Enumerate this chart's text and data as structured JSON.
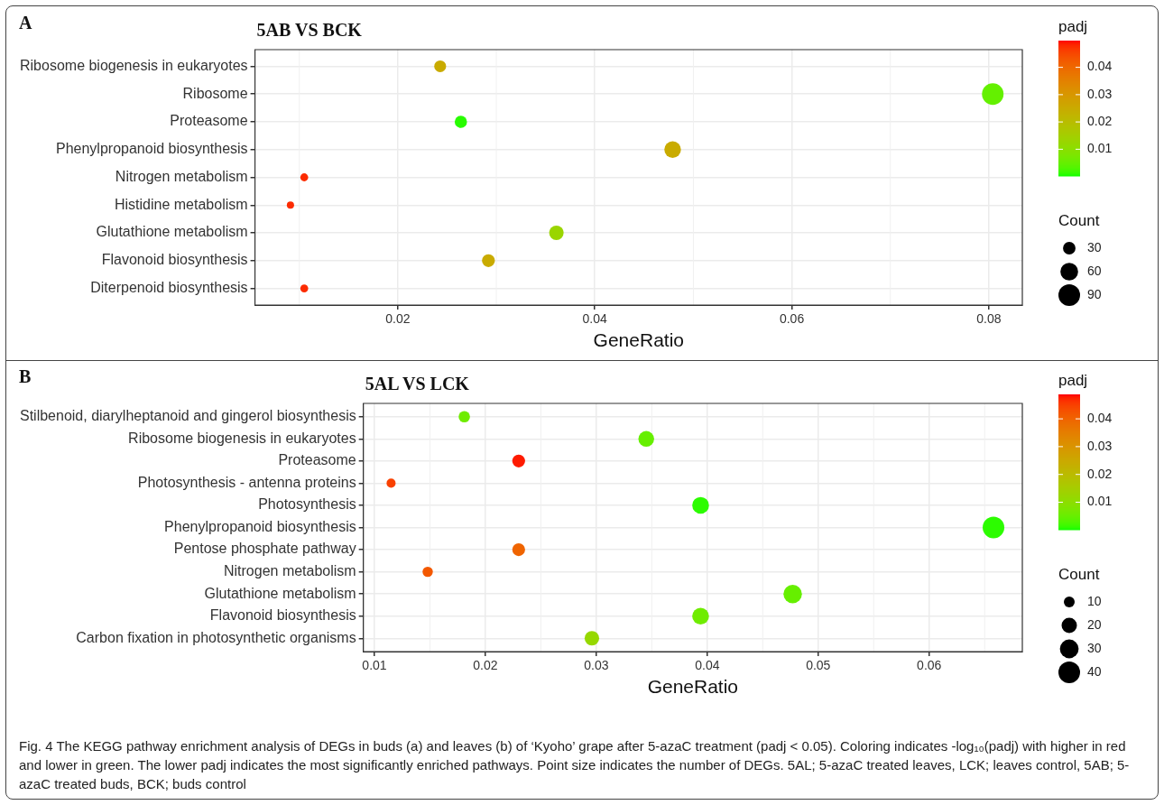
{
  "chart_data": [
    {
      "type": "bubble",
      "title": "5AB VS BCK",
      "orientation": "horizontal",
      "xlabel": "GeneRatio",
      "clabel": "padj",
      "legend_title": "Count",
      "annotations": [
        "A"
      ],
      "categories": [
        "Ribosome biogenesis in eukaryotes",
        "Ribosome",
        "Proteasome",
        "Phenylpropanoid biosynthesis",
        "Nitrogen metabolism",
        "Histidine metabolism",
        "Glutathione metabolism",
        "Flavonoid biosynthesis",
        "Diterpenoid biosynthesis"
      ],
      "values": [
        0.0243,
        0.0804,
        0.0264,
        0.0479,
        0.0105,
        0.0091,
        0.0361,
        0.0292,
        0.0105
      ],
      "sizes": [
        27,
        89,
        29,
        53,
        12,
        10,
        40,
        32,
        12
      ],
      "cvalues": [
        0.025,
        0.005,
        0.001,
        0.025,
        0.048,
        0.048,
        0.013,
        0.025,
        0.048
      ],
      "size_legend": [
        30,
        60,
        90
      ],
      "clim": [
        0.0002,
        0.0498
      ],
      "cticks": [
        0.01,
        0.02,
        0.03,
        0.04
      ],
      "xlim": [
        0.0055,
        0.0834
      ],
      "xticks": [
        0.02,
        0.04,
        0.06,
        0.08
      ],
      "grid": true
    },
    {
      "type": "bubble",
      "title": "5AL VS LCK",
      "orientation": "horizontal",
      "xlabel": "GeneRatio",
      "clabel": "padj",
      "legend_title": "Count",
      "annotations": [
        "B",
        "Fig. 4 The KEGG pathway enrichment analysis of DEGs in buds (a) and leaves (b) of ‘Kyoho’ grape after 5-azaC treatment (padj < 0.05). Coloring indicates -log₁₀(padj) with higher in red and lower in green. The lower padj indicates the most significantly enriched pathways. Point size indicates the number of DEGs. 5AL; 5-azaC treated leaves, LCK; leaves control, 5AB; 5-azaC treated buds, BCK; buds control"
      ],
      "categories": [
        "Stilbenoid, diarylheptanoid and gingerol biosynthesis",
        "Ribosome biogenesis in eukaryotes",
        "Proteasome",
        "Photosynthesis - antenna proteins",
        "Photosynthesis",
        "Phenylpropanoid biosynthesis",
        "Pentose phosphate pathway",
        "Nitrogen metabolism",
        "Glutathione metabolism",
        "Flavonoid biosynthesis",
        "Carbon fixation in photosynthetic organisms"
      ],
      "values": [
        0.0181,
        0.0345,
        0.023,
        0.0115,
        0.0394,
        0.0658,
        0.023,
        0.0148,
        0.0477,
        0.0394,
        0.0296
      ],
      "sizes": [
        11,
        21,
        14,
        7,
        24,
        40,
        14,
        9,
        29,
        24,
        18
      ],
      "cvalues": [
        0.006,
        0.005,
        0.048,
        0.045,
        0.001,
        0.001,
        0.04,
        0.042,
        0.005,
        0.006,
        0.012
      ],
      "size_legend": [
        10,
        20,
        30,
        40
      ],
      "clim": [
        0.0001,
        0.0488
      ],
      "cticks": [
        0.01,
        0.02,
        0.03,
        0.04
      ],
      "xlim": [
        0.009,
        0.0684
      ],
      "xticks": [
        0.01,
        0.02,
        0.03,
        0.04,
        0.05,
        0.06
      ],
      "grid": true
    }
  ]
}
